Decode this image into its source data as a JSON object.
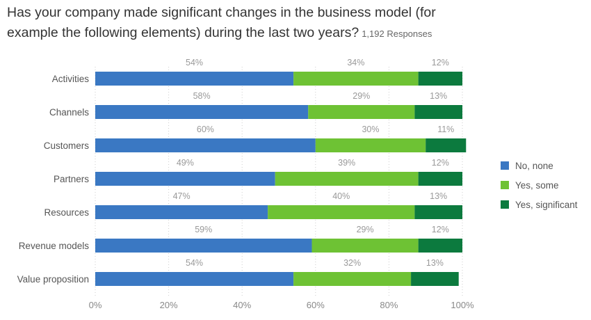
{
  "title_line1": "Has your company made significant changes in the business model (for",
  "title_line2": "example the following elements) during the last two years?",
  "responses": "1,192 Responses",
  "chart_data": {
    "type": "bar",
    "orientation": "horizontal",
    "stacked": true,
    "categories": [
      "Activities",
      "Channels",
      "Customers",
      "Partners",
      "Resources",
      "Revenue models",
      "Value proposition"
    ],
    "series": [
      {
        "name": "No, none",
        "color": "#3a78c3",
        "values": [
          54,
          58,
          60,
          49,
          47,
          59,
          54
        ]
      },
      {
        "name": "Yes, some",
        "color": "#6ec234",
        "values": [
          34,
          29,
          30,
          39,
          40,
          29,
          32
        ]
      },
      {
        "name": "Yes, significant",
        "color": "#0c7a3e",
        "values": [
          12,
          13,
          11,
          12,
          13,
          12,
          13
        ]
      }
    ],
    "xlim": [
      0,
      100
    ],
    "ticks": [
      "0%",
      "20%",
      "40%",
      "60%",
      "80%",
      "100%"
    ],
    "value_suffix": "%",
    "legend_position": "right",
    "grid": "vertical-dotted"
  }
}
